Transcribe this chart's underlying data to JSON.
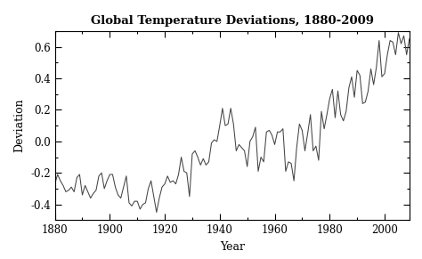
{
  "title": "Global Temperature Deviations, 1880-2009",
  "xlabel": "Year",
  "ylabel": "Deviation",
  "xlim": [
    1880,
    2009
  ],
  "ylim": [
    -0.5,
    0.7
  ],
  "yticks": [
    -0.4,
    -0.2,
    0.0,
    0.2,
    0.4,
    0.6
  ],
  "xticks": [
    1880,
    1900,
    1920,
    1940,
    1960,
    1980,
    2000
  ],
  "line_color": "#444444",
  "background_color": "#ffffff",
  "years": [
    1880,
    1881,
    1882,
    1883,
    1884,
    1885,
    1886,
    1887,
    1888,
    1889,
    1890,
    1891,
    1892,
    1893,
    1894,
    1895,
    1896,
    1897,
    1898,
    1899,
    1900,
    1901,
    1902,
    1903,
    1904,
    1905,
    1906,
    1907,
    1908,
    1909,
    1910,
    1911,
    1912,
    1913,
    1914,
    1915,
    1916,
    1917,
    1918,
    1919,
    1920,
    1921,
    1922,
    1923,
    1924,
    1925,
    1926,
    1927,
    1928,
    1929,
    1930,
    1931,
    1932,
    1933,
    1934,
    1935,
    1936,
    1937,
    1938,
    1939,
    1940,
    1941,
    1942,
    1943,
    1944,
    1945,
    1946,
    1947,
    1948,
    1949,
    1950,
    1951,
    1952,
    1953,
    1954,
    1955,
    1956,
    1957,
    1958,
    1959,
    1960,
    1961,
    1962,
    1963,
    1964,
    1965,
    1966,
    1967,
    1968,
    1969,
    1970,
    1971,
    1972,
    1973,
    1974,
    1975,
    1976,
    1977,
    1978,
    1979,
    1980,
    1981,
    1982,
    1983,
    1984,
    1985,
    1986,
    1987,
    1988,
    1989,
    1990,
    1991,
    1992,
    1993,
    1994,
    1995,
    1996,
    1997,
    1998,
    1999,
    2000,
    2001,
    2002,
    2003,
    2004,
    2005,
    2006,
    2007,
    2008,
    2009
  ],
  "values": [
    -0.27,
    -0.21,
    -0.25,
    -0.28,
    -0.32,
    -0.31,
    -0.29,
    -0.32,
    -0.23,
    -0.21,
    -0.34,
    -0.28,
    -0.32,
    -0.36,
    -0.33,
    -0.31,
    -0.22,
    -0.2,
    -0.3,
    -0.25,
    -0.21,
    -0.21,
    -0.29,
    -0.34,
    -0.36,
    -0.29,
    -0.22,
    -0.39,
    -0.41,
    -0.38,
    -0.38,
    -0.43,
    -0.4,
    -0.39,
    -0.3,
    -0.25,
    -0.35,
    -0.45,
    -0.36,
    -0.29,
    -0.27,
    -0.22,
    -0.26,
    -0.25,
    -0.27,
    -0.21,
    -0.1,
    -0.19,
    -0.2,
    -0.35,
    -0.08,
    -0.06,
    -0.1,
    -0.15,
    -0.11,
    -0.15,
    -0.13,
    -0.01,
    0.01,
    -0.0,
    0.1,
    0.21,
    0.1,
    0.11,
    0.21,
    0.11,
    -0.06,
    -0.02,
    -0.04,
    -0.06,
    -0.16,
    -0.0,
    0.03,
    0.09,
    -0.19,
    -0.1,
    -0.13,
    0.06,
    0.07,
    0.04,
    -0.02,
    0.06,
    0.06,
    0.08,
    -0.19,
    -0.13,
    -0.14,
    -0.25,
    -0.04,
    0.11,
    0.07,
    -0.06,
    0.05,
    0.17,
    -0.06,
    -0.03,
    -0.12,
    0.19,
    0.08,
    0.17,
    0.27,
    0.33,
    0.15,
    0.32,
    0.17,
    0.13,
    0.19,
    0.34,
    0.41,
    0.28,
    0.45,
    0.42,
    0.24,
    0.25,
    0.32,
    0.46,
    0.36,
    0.47,
    0.64,
    0.41,
    0.43,
    0.55,
    0.64,
    0.63,
    0.55,
    0.69,
    0.62,
    0.67,
    0.55,
    0.65
  ]
}
